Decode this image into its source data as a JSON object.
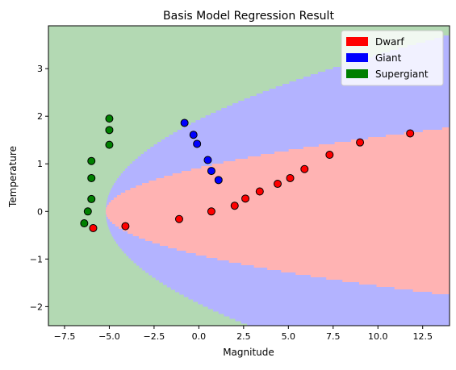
{
  "chart_data": {
    "type": "scatter",
    "title": "Basis Model Regression Result",
    "xlabel": "Magnitude",
    "ylabel": "Temperature",
    "xlim": [
      -8.4,
      14.0
    ],
    "ylim": [
      -2.4,
      3.9
    ],
    "xticks": [
      -7.5,
      -5.0,
      -2.5,
      0.0,
      2.5,
      5.0,
      7.5,
      10.0,
      12.5
    ],
    "xtick_labels": [
      "−7.5",
      "−5.0",
      "−2.5",
      "0.0",
      "2.5",
      "5.0",
      "7.5",
      "10.0",
      "12.5"
    ],
    "yticks": [
      -2,
      -1,
      0,
      1,
      2,
      3
    ],
    "ytick_labels": [
      "−2",
      "−1",
      "0",
      "1",
      "2",
      "3"
    ],
    "legend_position": "top-right",
    "grid": false,
    "regions": [
      {
        "name": "Dwarf",
        "color": "#ffb3b3",
        "boundary": "x >= -5.2 + 6.2*y^2"
      },
      {
        "name": "Giant",
        "color": "#b3b3ff",
        "boundary": "x >= -5.2 + 1.4*y^2"
      },
      {
        "name": "Supergiant",
        "color": "#b3d9b3",
        "boundary": "elsewhere"
      }
    ],
    "series": [
      {
        "name": "Dwarf",
        "color": "#ff0000",
        "points": [
          [
            -5.9,
            -0.35
          ],
          [
            -4.1,
            -0.31
          ],
          [
            -1.1,
            -0.16
          ],
          [
            0.7,
            0.0
          ],
          [
            2.0,
            0.12
          ],
          [
            2.6,
            0.27
          ],
          [
            3.4,
            0.42
          ],
          [
            4.4,
            0.58
          ],
          [
            5.1,
            0.7
          ],
          [
            5.9,
            0.89
          ],
          [
            7.3,
            1.19
          ],
          [
            9.0,
            1.45
          ],
          [
            11.8,
            1.64
          ]
        ]
      },
      {
        "name": "Giant",
        "color": "#0000ff",
        "points": [
          [
            -0.8,
            1.86
          ],
          [
            -0.3,
            1.61
          ],
          [
            -0.1,
            1.42
          ],
          [
            0.5,
            1.08
          ],
          [
            0.7,
            0.85
          ],
          [
            1.1,
            0.66
          ]
        ]
      },
      {
        "name": "Supergiant",
        "color": "#008000",
        "points": [
          [
            -5.0,
            1.95
          ],
          [
            -5.0,
            1.71
          ],
          [
            -5.0,
            1.4
          ],
          [
            -6.0,
            1.06
          ],
          [
            -6.0,
            0.7
          ],
          [
            -6.0,
            0.26
          ],
          [
            -6.2,
            0.0
          ],
          [
            -6.4,
            -0.25
          ]
        ]
      }
    ]
  }
}
